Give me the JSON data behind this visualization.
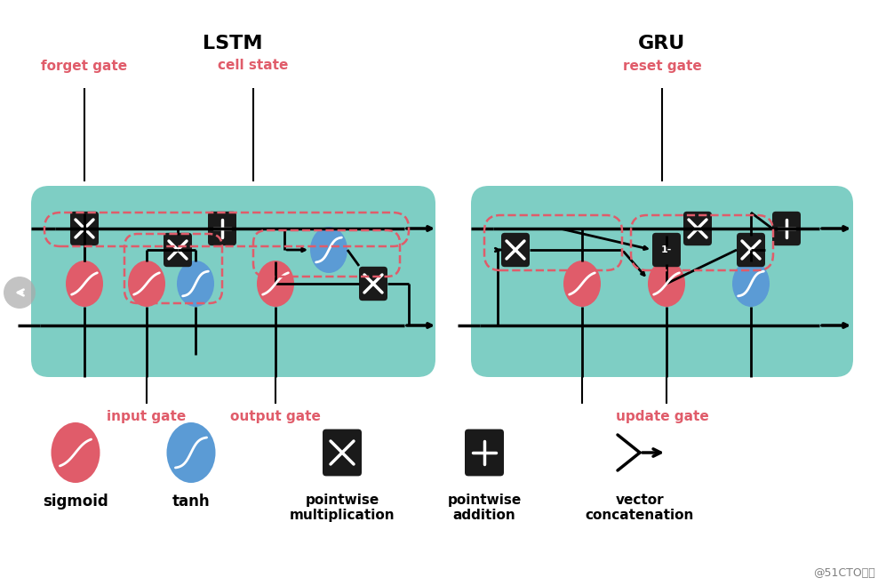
{
  "bg_color": "#ffffff",
  "teal_color": "#7ecec4",
  "red_color": "#e05c6a",
  "blue_color": "#5b9bd5",
  "dark_color": "#1a1a1a",
  "dashed_red": "#e05c6a",
  "title_lstm": "LSTM",
  "title_gru": "GRU",
  "label_forget": "forget gate",
  "label_cell": "cell state",
  "label_input": "input gate",
  "label_output": "output gate",
  "label_reset": "reset gate",
  "label_update": "update gate",
  "legend_sigmoid": "sigmoid",
  "legend_tanh": "tanh",
  "legend_mult": "pointwise\nmultiplication",
  "legend_add": "pointwise\naddition",
  "legend_vec": "vector\nconcatenation",
  "watermark": "@51CTO博客"
}
